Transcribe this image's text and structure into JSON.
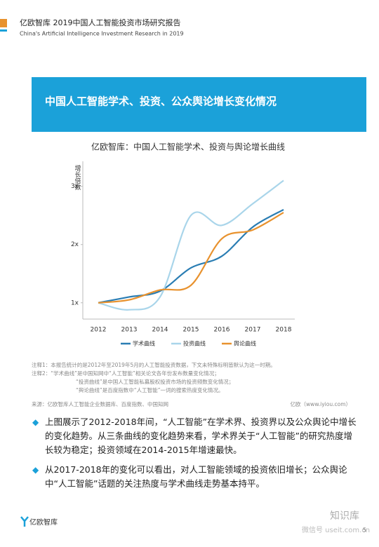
{
  "header": {
    "title": "亿欧智库 2019中国人工智能投资市场研究报告",
    "subtitle": "China's Artificial Intelligence Investment Research in 2019"
  },
  "banner": {
    "title": "中国人工智能学术、投资、公众舆论增长变化情况"
  },
  "chart_data": {
    "type": "line",
    "title": "亿欧智库：中国人工智能学术、投资与舆论增长曲线",
    "y_label": "增长倍数",
    "categories": [
      "2012",
      "2013",
      "2014",
      "2015",
      "2016",
      "2017",
      "2018"
    ],
    "series": [
      {
        "name": "学术曲线",
        "color": "#2a7db3",
        "values": [
          1,
          1.1,
          1.2,
          1.6,
          1.8,
          2.3,
          2.6
        ]
      },
      {
        "name": "投资曲线",
        "color": "#a9d5ea",
        "values": [
          1,
          0.88,
          1.1,
          2.5,
          2.33,
          2.7,
          3.1
        ]
      },
      {
        "name": "舆论曲线",
        "color": "#e8922e",
        "values": [
          1,
          1.05,
          1.22,
          1.3,
          2.1,
          2.25,
          2.55
        ]
      }
    ],
    "ylim": [
      0.72,
      3.43
    ],
    "yticks": [
      {
        "value": 1,
        "label": "1x"
      },
      {
        "value": 2,
        "label": "2x"
      },
      {
        "value": 3,
        "label": "3x"
      }
    ],
    "grid": false,
    "legend": "bottom"
  },
  "notes": [
    "注释1：本报告统计的是2012年至2019年5月的人工智能投资数据，下文未特殊标明皆默认为这一时期。",
    "注释2：“学术曲线”是中国知网中“人工智能”相关论文各年份发布数量变化情况；",
    "“投资曲线”是中国人工智能私募股权投资市场的投资频数变化情况；",
    "“舆论曲线”是百度指数中“人工智能”一词的搜索热度变化情况。"
  ],
  "source": {
    "left": "来源：亿欧智库人工智能企业数据库、百度指数、中国知网",
    "right": "亿欧（www.iyiou.com）"
  },
  "bullets": [
    "上图展示了2012-2018年间，“人工智能”在学术界、投资界以及公众舆论中增长的变化趋势。从三条曲线的变化趋势来看，学术界关于“人工智能”的研究热度增长较为稳定；投资领域在2014-2015年增速最快。",
    "从2017-2018年的变化可以看出，对人工智能领域的投资依旧增长；公众舆论中“人工智能”话题的关注热度与学术曲线走势基本持平。"
  ],
  "footer": {
    "logo": "亿欧智库",
    "page": "5"
  },
  "watermark": {
    "title": "知识库",
    "subtitle": "微信号 useit.com.cn"
  }
}
